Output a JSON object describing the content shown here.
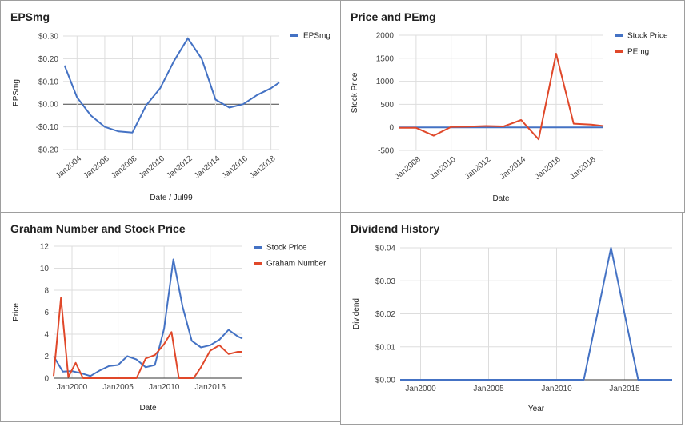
{
  "colors": {
    "blue": "#4472c4",
    "red": "#e0482a",
    "grid": "#dddddd",
    "zero": "#444444"
  },
  "chart_data": [
    {
      "type": "line",
      "title": "EPSmg",
      "xlabel": "Date / Jul99",
      "ylabel": "EPSmg",
      "ylim": [
        -0.2,
        0.3
      ],
      "y_ticks": [
        -0.2,
        -0.1,
        0,
        0.1,
        0.2,
        0.3
      ],
      "y_tick_labels": [
        "-$0.20",
        "-$0.10",
        "$0.00",
        "$0.10",
        "$0.20",
        "$0.30"
      ],
      "xlim": [
        2003,
        2018.6
      ],
      "x_ticks": [
        2004,
        2006,
        2008,
        2010,
        2012,
        2014,
        2016,
        2018
      ],
      "x_tick_labels": [
        "Jan2004",
        "Jan2006",
        "Jan2008",
        "Jan2010",
        "Jan2012",
        "Jan2014",
        "Jan2016",
        "Jan2018"
      ],
      "legend_position": "top-right",
      "series": [
        {
          "name": "EPSmg",
          "color": "#4472c4",
          "x": [
            2003.1,
            2004,
            2005,
            2006,
            2007,
            2008,
            2009,
            2010,
            2011,
            2012,
            2013,
            2014,
            2015,
            2016,
            2017,
            2018,
            2018.6
          ],
          "y": [
            0.17,
            0.03,
            -0.05,
            -0.1,
            -0.12,
            -0.125,
            -0.005,
            0.07,
            0.19,
            0.29,
            0.2,
            0.02,
            -0.015,
            0.0,
            0.04,
            0.07,
            0.095
          ]
        }
      ]
    },
    {
      "type": "line",
      "title": "Price and PEmg",
      "xlabel": "Date",
      "ylabel": "Stock Price",
      "ylim": [
        -500,
        2000
      ],
      "y_ticks": [
        -500,
        0,
        500,
        1000,
        1500,
        2000
      ],
      "y_tick_labels": [
        "-500",
        "0",
        "500",
        "1000",
        "1500",
        "2000"
      ],
      "xlim": [
        2007,
        2018.7
      ],
      "x_ticks": [
        2008,
        2010,
        2012,
        2014,
        2016,
        2018
      ],
      "x_tick_labels": [
        "Jan2008",
        "Jan2010",
        "Jan2012",
        "Jan2014",
        "Jan2016",
        "Jan2018"
      ],
      "legend_position": "top-right",
      "series": [
        {
          "name": "Stock Price",
          "color": "#4472c4",
          "x": [
            2007,
            2010,
            2013,
            2016,
            2018.7
          ],
          "y": [
            0,
            0,
            0,
            0,
            0
          ]
        },
        {
          "name": "PEmg",
          "color": "#e0482a",
          "x": [
            2007,
            2008,
            2009,
            2010,
            2011,
            2012,
            2013,
            2014,
            2015,
            2016,
            2017,
            2018,
            2018.7
          ],
          "y": [
            -10,
            -10,
            -180,
            10,
            15,
            30,
            20,
            160,
            -260,
            1600,
            80,
            60,
            30
          ]
        }
      ]
    },
    {
      "type": "line",
      "title": "Graham Number and Stock Price",
      "xlabel": "Date",
      "ylabel": "Price",
      "ylim": [
        0,
        12
      ],
      "y_ticks": [
        0,
        2,
        4,
        6,
        8,
        10,
        12
      ],
      "y_tick_labels": [
        "0",
        "2",
        "4",
        "6",
        "8",
        "10",
        "12"
      ],
      "xlim": [
        1998,
        2018.5
      ],
      "x_ticks": [
        2000,
        2005,
        2010,
        2015
      ],
      "x_tick_labels": [
        "Jan2000",
        "Jan2005",
        "Jan2010",
        "Jan2015"
      ],
      "legend_position": "top-right",
      "series": [
        {
          "name": "Stock Price",
          "color": "#4472c4",
          "x": [
            1998,
            1999,
            2000,
            2001,
            2002,
            2003,
            2004,
            2005,
            2006,
            2007,
            2008,
            2009,
            2010,
            2011,
            2012,
            2013,
            2014,
            2015,
            2016,
            2017,
            2018,
            2018.5
          ],
          "y": [
            2.0,
            0.6,
            0.65,
            0.45,
            0.2,
            0.7,
            1.1,
            1.2,
            2.0,
            1.7,
            1.0,
            1.2,
            4.5,
            10.8,
            6.5,
            3.4,
            2.8,
            3.0,
            3.5,
            4.4,
            3.8,
            3.6
          ]
        },
        {
          "name": "Graham Number",
          "color": "#e0482a",
          "x": [
            1998,
            1998.8,
            1999.6,
            2000.4,
            2001.2,
            2002,
            2003,
            2004,
            2005,
            2006,
            2007,
            2008,
            2009,
            2010,
            2010.8,
            2011.6,
            2012.4,
            2013.2,
            2014,
            2015,
            2016,
            2017,
            2018,
            2018.5
          ],
          "y": [
            0.2,
            7.3,
            0.1,
            1.4,
            0.0,
            0.0,
            0.0,
            0.0,
            0.0,
            0.0,
            0.0,
            1.8,
            2.1,
            3.1,
            4.2,
            0.0,
            0.0,
            0.0,
            1.0,
            2.5,
            3.0,
            2.2,
            2.4,
            2.4
          ]
        }
      ]
    },
    {
      "type": "line",
      "title": "Dividend History",
      "xlabel": "Year",
      "ylabel": "Dividend",
      "ylim": [
        0,
        0.04
      ],
      "y_ticks": [
        0,
        0.01,
        0.02,
        0.03,
        0.04
      ],
      "y_tick_labels": [
        "$0.00",
        "$0.01",
        "$0.02",
        "$0.03",
        "$0.04"
      ],
      "xlim": [
        1998.5,
        2018.5
      ],
      "x_ticks": [
        2000,
        2005,
        2010,
        2015
      ],
      "x_tick_labels": [
        "Jan2000",
        "Jan2005",
        "Jan2010",
        "Jan2015"
      ],
      "legend_position": "none",
      "series": [
        {
          "color": "#4472c4",
          "x": [
            1998.5,
            2012,
            2014,
            2016,
            2018.5
          ],
          "y": [
            0,
            0,
            0.04,
            0,
            0
          ]
        }
      ]
    }
  ]
}
